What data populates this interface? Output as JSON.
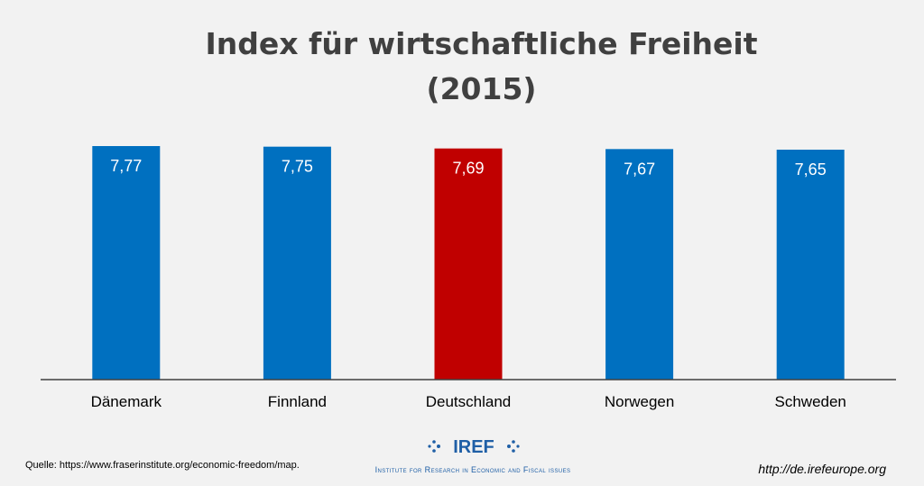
{
  "chart_data": {
    "type": "bar",
    "title": [
      "Index für wirtschaftliche Freiheit",
      "(2015)"
    ],
    "categories": [
      "Dänemark",
      "Finnland",
      "Deutschland",
      "Norwegen",
      "Schweden"
    ],
    "values": [
      7.77,
      7.75,
      7.69,
      7.67,
      7.65
    ],
    "value_labels": [
      "7,77",
      "7,75",
      "7,69",
      "7,67",
      "7,65"
    ],
    "colors": [
      "#0070c0",
      "#0070c0",
      "#c00000",
      "#0070c0",
      "#0070c0"
    ],
    "xlabel": "",
    "ylabel": "",
    "grid": false,
    "legend": "none"
  },
  "footer": {
    "source": "Quelle: https://www.fraserinstitute.org/economic-freedom/map.",
    "url": "http://de.irefeurope.org",
    "logo_name": "IREF",
    "logo_tagline": "Institute for Research in Economic and Fiscal issues"
  }
}
